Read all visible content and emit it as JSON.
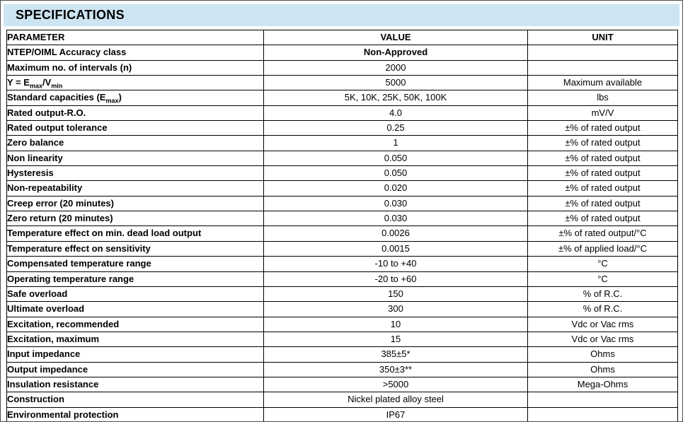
{
  "header": {
    "title": "SPECIFICATIONS",
    "band_color": "#cde4f2"
  },
  "table": {
    "columns": [
      "PARAMETER",
      "VALUE",
      "UNIT"
    ],
    "rows": [
      {
        "parameter": "NTEP/OIML Accuracy class",
        "value": "Non-Approved",
        "unit": "",
        "value_bold": true
      },
      {
        "parameter": "Maximum no. of intervals (n)",
        "value": "2000",
        "unit": ""
      },
      {
        "parameter": "Y = E~max~/V~min~",
        "value": "5000",
        "unit": "Maximum available"
      },
      {
        "parameter": "Standard capacities (E~max~)",
        "value": "5K, 10K, 25K, 50K, 100K",
        "unit": "lbs"
      },
      {
        "parameter": "Rated output-R.O.",
        "value": "4.0",
        "unit": "mV/V"
      },
      {
        "parameter": "Rated output tolerance",
        "value": "0.25",
        "unit": "±% of rated output"
      },
      {
        "parameter": "Zero balance",
        "value": "1",
        "unit": "±% of rated output"
      },
      {
        "parameter": "Non linearity",
        "value": "0.050",
        "unit": "±% of rated output"
      },
      {
        "parameter": "Hysteresis",
        "value": "0.050",
        "unit": "±% of rated output"
      },
      {
        "parameter": "Non-repeatability",
        "value": "0.020",
        "unit": "±% of rated output"
      },
      {
        "parameter": "Creep error (20 minutes)",
        "value": "0.030",
        "unit": "±% of rated output"
      },
      {
        "parameter": "Zero return (20 minutes)",
        "value": "0.030",
        "unit": "±% of rated output"
      },
      {
        "parameter": "Temperature effect on min. dead load output",
        "value": "0.0026",
        "unit": "±% of rated output/°C"
      },
      {
        "parameter": "Temperature effect on sensitivity",
        "value": "0.0015",
        "unit": "±% of applied load/°C"
      },
      {
        "parameter": "Compensated temperature range",
        "value": "-10 to +40",
        "unit": "°C"
      },
      {
        "parameter": "Operating temperature range",
        "value": "-20 to +60",
        "unit": "°C"
      },
      {
        "parameter": "Safe overload",
        "value": "150",
        "unit": "% of R.C."
      },
      {
        "parameter": "Ultimate overload",
        "value": "300",
        "unit": "% of R.C."
      },
      {
        "parameter": "Excitation, recommended",
        "value": "10",
        "unit": "Vdc or Vac rms"
      },
      {
        "parameter": "Excitation, maximum",
        "value": "15",
        "unit": "Vdc or Vac rms"
      },
      {
        "parameter": "Input impedance",
        "value": "385±5*",
        "unit": "Ohms"
      },
      {
        "parameter": "Output impedance",
        "value": "350±3**",
        "unit": "Ohms"
      },
      {
        "parameter": "Insulation resistance",
        "value": ">5000",
        "unit": "Mega-Ohms"
      },
      {
        "parameter": "Construction",
        "value": "Nickel plated alloy steel",
        "unit": ""
      },
      {
        "parameter": "Environmental protection",
        "value": "IP67",
        "unit": ""
      }
    ]
  }
}
